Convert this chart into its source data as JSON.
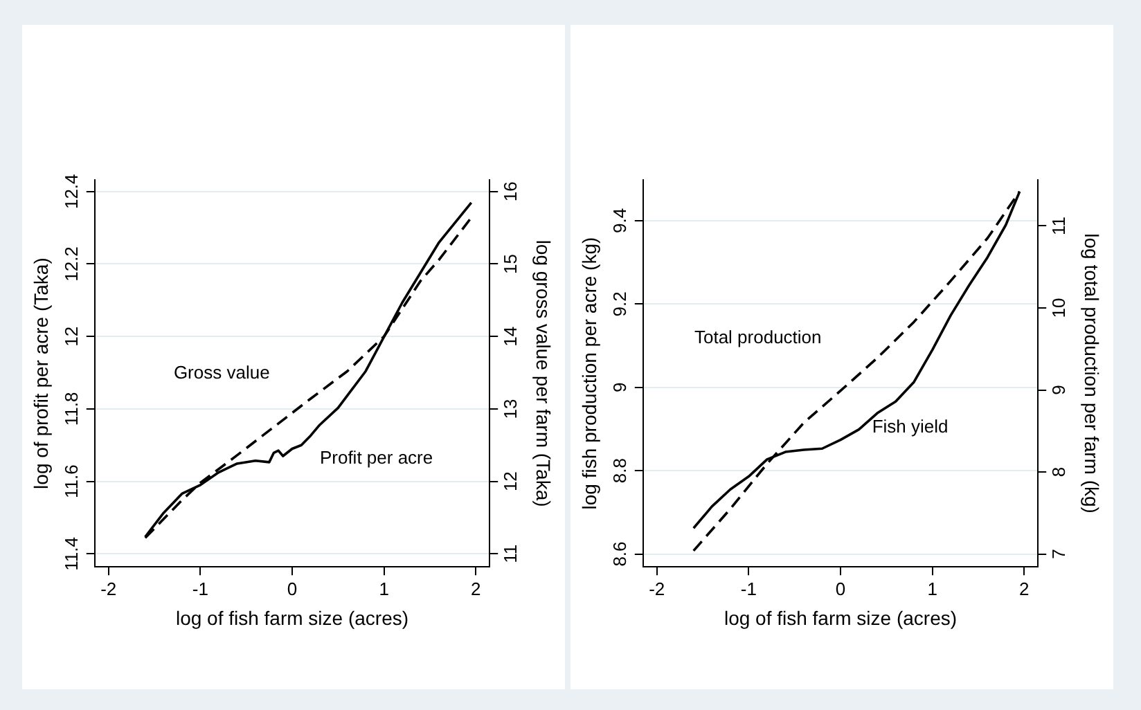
{
  "chart_data": [
    {
      "type": "line",
      "xlabel": "log of fish farm size (acres)",
      "ylabel": "log of profit per acre (Taka)",
      "y2label": "log gross value per farm (Taka)",
      "xlim": [
        -2.15,
        2.15
      ],
      "xticks": [
        -2,
        -1,
        0,
        1,
        2
      ],
      "ylim": [
        11.364,
        12.432
      ],
      "yticks": [
        11.4,
        11.6,
        11.8,
        12,
        12.2,
        12.4
      ],
      "y2lim": [
        10.82,
        16.16
      ],
      "y2ticks": [
        11,
        12,
        13,
        14,
        15,
        16
      ],
      "grid": "y",
      "marker": "none",
      "series": [
        {
          "name": "Profit per acre",
          "color": "#000000",
          "line_style": "solid",
          "axis": "y",
          "x": [
            -1.6,
            -1.4,
            -1.2,
            -1.0,
            -0.8,
            -0.6,
            -0.4,
            -0.25,
            -0.2,
            -0.15,
            -0.1,
            0,
            0.1,
            0.2,
            0.3,
            0.5,
            0.8,
            1.0,
            1.2,
            1.4,
            1.6,
            1.95
          ],
          "values": [
            11.447,
            11.513,
            11.566,
            11.59,
            11.625,
            11.649,
            11.657,
            11.653,
            11.679,
            11.685,
            11.67,
            11.69,
            11.7,
            11.726,
            11.756,
            11.803,
            11.904,
            11.999,
            12.094,
            12.177,
            12.26,
            12.369
          ]
        },
        {
          "name": "Gross value",
          "color": "#000000",
          "line_style": "dashed",
          "axis": "y2",
          "x": [
            -1.6,
            -1.2,
            -1.0,
            -0.6,
            -0.2,
            0.2,
            0.6,
            1.0,
            1.4,
            1.6,
            1.95
          ],
          "values": [
            11.22,
            11.74,
            11.98,
            12.36,
            12.75,
            13.14,
            13.52,
            14.0,
            14.77,
            15.06,
            15.64
          ]
        }
      ]
    },
    {
      "type": "line",
      "xlabel": "log of fish farm size (acres)",
      "ylabel": "log fish production per acre (kg)",
      "y2label": "log total production per farm (kg)",
      "xlim": [
        -2.15,
        2.15
      ],
      "xticks": [
        -2,
        -1,
        0,
        1,
        2
      ],
      "ylim": [
        8.569,
        9.498
      ],
      "yticks": [
        8.6,
        8.8,
        9,
        9.2,
        9.4
      ],
      "y2lim": [
        6.843,
        11.561
      ],
      "y2ticks": [
        7,
        8,
        9,
        10,
        11
      ],
      "grid": "y",
      "marker": "none",
      "series": [
        {
          "name": "Fish yield",
          "color": "#000000",
          "line_style": "solid",
          "axis": "y",
          "x": [
            -1.6,
            -1.4,
            -1.2,
            -1.0,
            -0.8,
            -0.6,
            -0.4,
            -0.2,
            0,
            0.2,
            0.4,
            0.6,
            0.8,
            1.0,
            1.2,
            1.4,
            1.6,
            1.8,
            1.95
          ],
          "values": [
            8.662,
            8.714,
            8.755,
            8.786,
            8.827,
            8.845,
            8.85,
            8.853,
            8.874,
            8.899,
            8.938,
            8.966,
            9.013,
            9.09,
            9.173,
            9.245,
            9.312,
            9.39,
            9.47
          ]
        },
        {
          "name": "Total production",
          "color": "#000000",
          "line_style": "dashed",
          "axis": "y2",
          "x": [
            -1.6,
            -1.2,
            -0.8,
            -0.4,
            0,
            0.4,
            0.8,
            1.2,
            1.6,
            1.95
          ],
          "values": [
            7.04,
            7.55,
            8.1,
            8.6,
            8.99,
            9.39,
            9.83,
            10.33,
            10.85,
            11.42
          ]
        }
      ]
    }
  ]
}
